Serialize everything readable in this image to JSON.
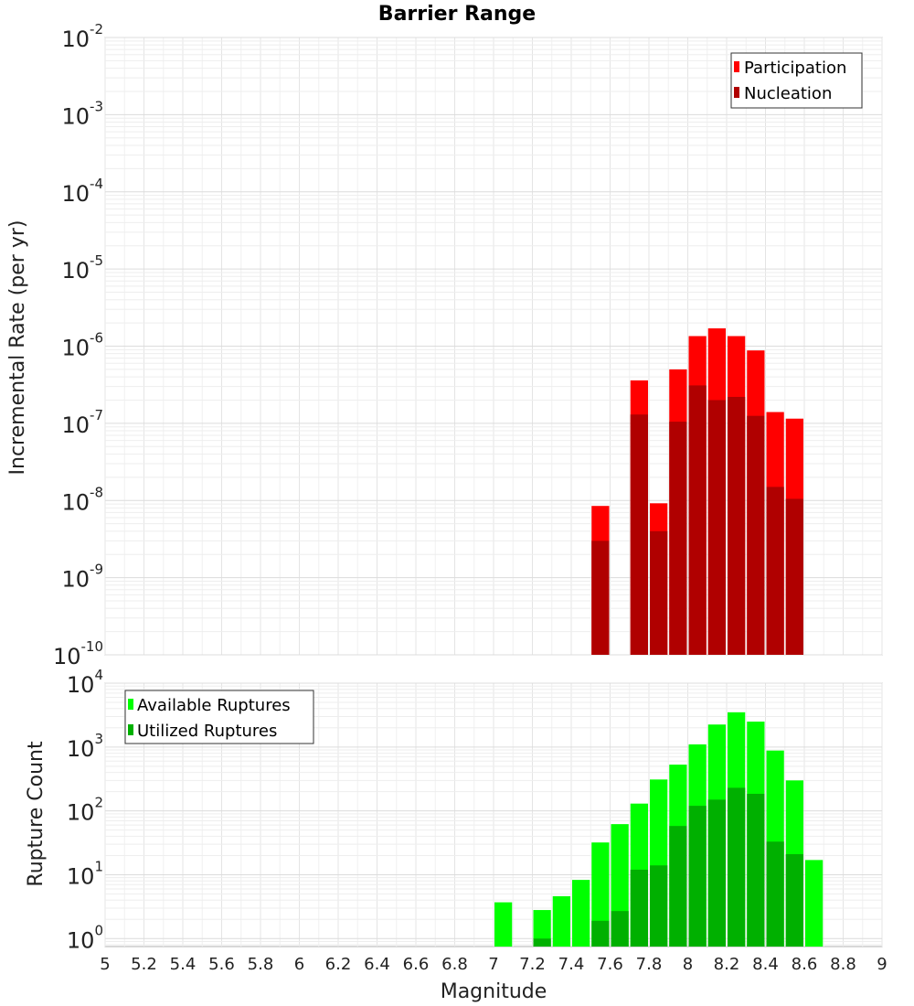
{
  "chart_data": [
    {
      "type": "bar",
      "title": "Barrier Range",
      "xlabel": "",
      "ylabel": "Incremental Rate (per yr)",
      "yscale": "log",
      "ylim": [
        1e-10,
        0.01
      ],
      "xlim": [
        5,
        9
      ],
      "bar_width": 0.1,
      "legend_position": "top-right",
      "overlay": true,
      "x": [
        7.55,
        7.65,
        7.75,
        7.85,
        7.95,
        8.05,
        8.15,
        8.25,
        8.35,
        8.45,
        8.55
      ],
      "series": [
        {
          "name": "Participation",
          "color": "#ff0000",
          "values": [
            8.5e-09,
            null,
            3.6e-07,
            9.2e-09,
            5e-07,
            1.35e-06,
            1.7e-06,
            1.35e-06,
            8.8e-07,
            1.4e-07,
            1.15e-07
          ]
        },
        {
          "name": "Nucleation",
          "color": "#b00000",
          "values": [
            3e-09,
            null,
            1.3e-07,
            4e-09,
            1.05e-07,
            3.1e-07,
            2e-07,
            2.2e-07,
            1.25e-07,
            1.5e-08,
            1.05e-08
          ]
        }
      ],
      "yticks": [
        {
          "base": "10",
          "exp": "-2",
          "value": 0.01
        },
        {
          "base": "10",
          "exp": "-3",
          "value": 0.001
        },
        {
          "base": "10",
          "exp": "-4",
          "value": 0.0001
        },
        {
          "base": "10",
          "exp": "-5",
          "value": 1e-05
        },
        {
          "base": "10",
          "exp": "-6",
          "value": 1e-06
        },
        {
          "base": "10",
          "exp": "-7",
          "value": 1e-07
        },
        {
          "base": "10",
          "exp": "-8",
          "value": 1e-08
        },
        {
          "base": "10",
          "exp": "-9",
          "value": 1e-09
        },
        {
          "base": "10",
          "exp": "-10",
          "value": 1e-10
        }
      ]
    },
    {
      "type": "bar",
      "title": "",
      "xlabel": "Magnitude",
      "ylabel": "Rupture Count",
      "yscale": "log",
      "ylim": [
        0.75,
        10000
      ],
      "xlim": [
        5,
        9
      ],
      "bar_width": 0.1,
      "legend_position": "top-left",
      "overlay": true,
      "x": [
        7.05,
        7.15,
        7.25,
        7.35,
        7.45,
        7.55,
        7.65,
        7.75,
        7.85,
        7.95,
        8.05,
        8.15,
        8.25,
        8.35,
        8.45,
        8.55,
        8.65
      ],
      "series": [
        {
          "name": "Available Ruptures",
          "color": "#00ff00",
          "values": [
            3.7,
            null,
            2.8,
            4.6,
            8.3,
            32,
            62,
            130,
            310,
            530,
            1100,
            2250,
            3500,
            2500,
            880,
            300,
            17
          ]
        },
        {
          "name": "Utilized Ruptures",
          "color": "#00b000",
          "values": [
            null,
            null,
            1,
            null,
            null,
            1.9,
            2.7,
            12,
            14,
            58,
            120,
            150,
            230,
            185,
            33,
            21,
            null
          ]
        }
      ],
      "yticks": [
        {
          "base": "10",
          "exp": "4",
          "value": 10000
        },
        {
          "base": "10",
          "exp": "3",
          "value": 1000
        },
        {
          "base": "10",
          "exp": "2",
          "value": 100
        },
        {
          "base": "10",
          "exp": "1",
          "value": 10
        },
        {
          "base": "10",
          "exp": "0",
          "value": 1
        }
      ],
      "xticks": [
        "5",
        "5.2",
        "5.4",
        "5.6",
        "5.8",
        "6",
        "6.2",
        "6.4",
        "6.6",
        "6.8",
        "7",
        "7.2",
        "7.4",
        "7.6",
        "7.8",
        "8",
        "8.2",
        "8.4",
        "8.6",
        "8.8",
        "9"
      ]
    }
  ]
}
